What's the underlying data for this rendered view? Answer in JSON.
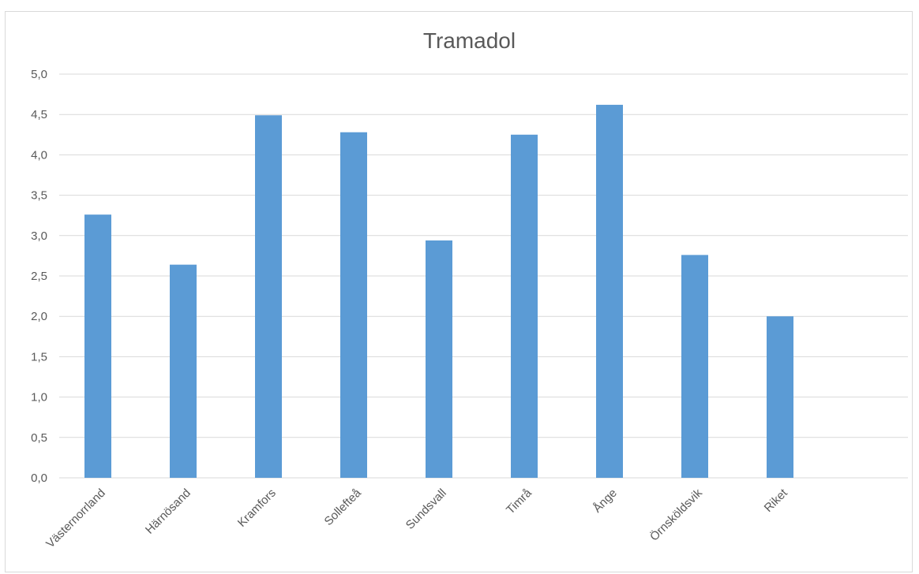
{
  "chart_data": {
    "type": "bar",
    "title": "Tramadol",
    "categories": [
      "Västernorrland",
      "Härnösand",
      "Kramfors",
      "Sollefteå",
      "Sundsvall",
      "Timrå",
      "Ånge",
      "Örnsköldsvik",
      "Riket"
    ],
    "values": [
      3.26,
      2.64,
      4.49,
      4.28,
      2.94,
      4.25,
      4.62,
      2.76,
      2.0
    ],
    "ylim": [
      0,
      5
    ],
    "yticks": [
      "0,0",
      "0,5",
      "1,0",
      "1,5",
      "2,0",
      "2,5",
      "3,0",
      "3,5",
      "4,0",
      "4,5",
      "5,0"
    ],
    "ytick_values": [
      0,
      0.5,
      1,
      1.5,
      2,
      2.5,
      3,
      3.5,
      4,
      4.5,
      5
    ],
    "grid": true,
    "legend": "none",
    "bar_color": "#5b9bd5",
    "grid_color": "#d9d9d9",
    "text_color": "#595959"
  }
}
